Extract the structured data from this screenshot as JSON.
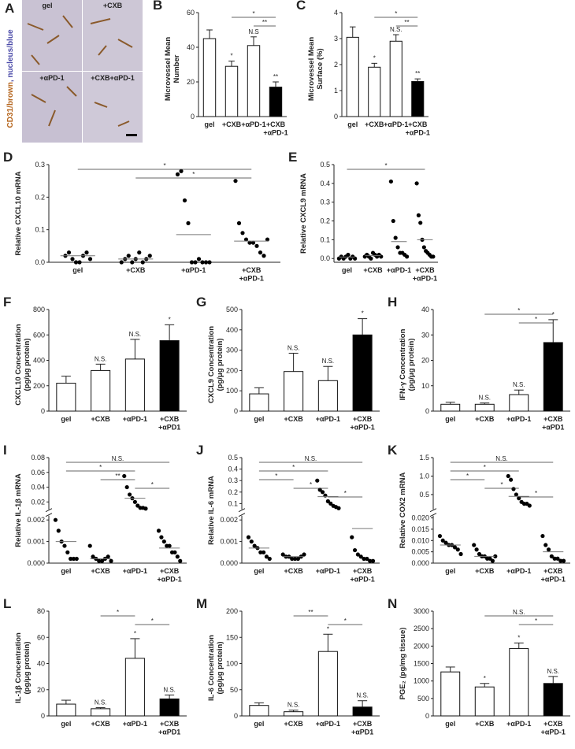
{
  "image_panel": {
    "panel": "A",
    "labels": [
      "gel",
      "+CXB",
      "+αPD-1",
      "+CXB+αPD-1"
    ],
    "side_label": [
      "CD31/brown",
      ", nucleus/blue"
    ]
  },
  "chart_data": [
    {
      "type": "bar",
      "panel": "B",
      "ylabel": "Microvessel Mean\nNumber",
      "categories": [
        "gel",
        "+CXB",
        "+αPD-1",
        "+CXB\n+αPD-1"
      ],
      "values": [
        45,
        29,
        41,
        17
      ],
      "errors": [
        5,
        3,
        5,
        3
      ],
      "colors": [
        "#ffffff",
        "#ffffff",
        "#ffffff",
        "#000000"
      ],
      "bar_labels": [
        null,
        "*",
        "N.S",
        "**"
      ],
      "annotations": [
        {
          "text": "*",
          "from": 1,
          "to": 3
        },
        {
          "text": "**",
          "from": 2,
          "to": 3
        }
      ],
      "ylim": [
        0,
        60
      ],
      "yticks": [
        0,
        20,
        40,
        60
      ]
    },
    {
      "type": "bar",
      "panel": "C",
      "ylabel": "Microvessel Mean\nSurface (%)",
      "categories": [
        "gel",
        "+CXB",
        "+αPD-1",
        "+CXB\n+αPD-1"
      ],
      "values": [
        3.05,
        1.9,
        2.9,
        1.35
      ],
      "errors": [
        0.4,
        0.15,
        0.25,
        0.1
      ],
      "colors": [
        "#ffffff",
        "#ffffff",
        "#ffffff",
        "#000000"
      ],
      "bar_labels": [
        null,
        "*",
        "N.S.",
        "**"
      ],
      "annotations": [
        {
          "text": "*",
          "from": 1,
          "to": 3
        },
        {
          "text": "**",
          "from": 2,
          "to": 3
        }
      ],
      "ylim": [
        0,
        4
      ],
      "yticks": [
        0,
        1,
        2,
        3,
        4
      ]
    },
    {
      "type": "strip",
      "panel": "D",
      "ylabel": "Relative CXCL10 mRNA",
      "categories": [
        "gel",
        "+CXB",
        "+αPD-1",
        "+CXB\n+αPD-1"
      ],
      "values": [
        [
          0.02,
          0.03,
          0.01,
          0.0,
          0.0,
          0.02,
          0.03,
          0.01
        ],
        [
          0.0,
          0.01,
          0.02,
          0.0,
          0.01,
          0.03,
          0.0,
          0.01,
          0.02
        ],
        [
          0.27,
          0.28,
          0.19,
          0.12,
          0.0,
          0.0,
          0.01,
          0.0,
          0.0,
          0.0
        ],
        [
          0.25,
          0.12,
          0.09,
          0.07,
          0.06,
          0.06,
          0.05,
          0.03,
          0.02,
          0.07
        ]
      ],
      "means": [
        0.02,
        0.01,
        0.085,
        0.065
      ],
      "color": "#000000",
      "annotations": [
        {
          "text": "*",
          "from": 0,
          "to": 3
        },
        {
          "text": "*",
          "from": 1,
          "to": 3
        }
      ],
      "ylim": [
        0,
        0.3
      ],
      "yticks": [
        {
          "value": 0,
          "label": "0.0"
        },
        0.1,
        0.2,
        0.3
      ]
    },
    {
      "type": "strip",
      "panel": "E",
      "ylabel": "Relative CXCL9 mRNA",
      "categories": [
        "gel",
        "+CXB",
        "+αPD-1",
        "+CXB\n+αPD-1"
      ],
      "values": [
        [
          0.0,
          0.01,
          0.0,
          0.01,
          0.02,
          0.0,
          0.01,
          0.0
        ],
        [
          0.01,
          0.02,
          0.01,
          0.0,
          0.03,
          0.02,
          0.01,
          0.02,
          0.01
        ],
        [
          0.41,
          0.2,
          0.11,
          0.06,
          0.03,
          0.03,
          0.02,
          0.01
        ],
        [
          0.4,
          0.23,
          0.19,
          0.1,
          0.06,
          0.04,
          0.03,
          0.02,
          0.01,
          0.01
        ]
      ],
      "means": [
        0.008,
        0.015,
        0.09,
        0.1
      ],
      "color": "#000000",
      "annotations": [
        {
          "text": "*",
          "from": 0,
          "to": 3
        }
      ],
      "ylim": [
        -0.02,
        0.5
      ],
      "yticks": [
        {
          "value": 0,
          "label": "0.0"
        },
        0.1,
        0.2,
        0.3,
        0.4,
        0.5
      ]
    },
    {
      "type": "bar",
      "panel": "F",
      "ylabel": "CXCL10 Concentration\n(pg/μg protein)",
      "categories": [
        "gel",
        "+CXB",
        "+αPD-1",
        "+CXB\n+αPD1"
      ],
      "values": [
        220,
        320,
        410,
        555
      ],
      "errors": [
        55,
        50,
        155,
        125
      ],
      "colors": [
        "#ffffff",
        "#ffffff",
        "#ffffff",
        "#000000"
      ],
      "bar_labels": [
        null,
        "N.S.",
        "N.S.",
        "*"
      ],
      "annotations": [],
      "ylim": [
        0,
        800
      ],
      "yticks": [
        0,
        200,
        400,
        600,
        800
      ]
    },
    {
      "type": "bar",
      "panel": "G",
      "ylabel": "CXCL9 Concentration\n(pg/μg protein)",
      "categories": [
        "gel",
        "+CXB",
        "+αPD-1",
        "+CXB\n+αPD-1"
      ],
      "values": [
        85,
        195,
        150,
        375
      ],
      "errors": [
        30,
        90,
        70,
        80
      ],
      "colors": [
        "#ffffff",
        "#ffffff",
        "#ffffff",
        "#000000"
      ],
      "bar_labels": [
        null,
        "N.S.",
        "N.S.",
        "*"
      ],
      "annotations": [],
      "ylim": [
        0,
        500
      ],
      "yticks": [
        0,
        100,
        200,
        300,
        400,
        500
      ]
    },
    {
      "type": "bar",
      "panel": "H",
      "ylabel": "IFN-γ Concentration\n(pg/μg protein)",
      "categories": [
        "gel",
        "+CXB",
        "+αPD-1",
        "+CXB\n+αPD1"
      ],
      "values": [
        2.7,
        2.7,
        6.5,
        27
      ],
      "errors": [
        0.8,
        0.5,
        1.8,
        9
      ],
      "colors": [
        "#ffffff",
        "#ffffff",
        "#ffffff",
        "#000000"
      ],
      "bar_labels": [
        null,
        "N.S.",
        "N.S.",
        "*"
      ],
      "annotations": [
        {
          "text": "*",
          "from": 1,
          "to": 3
        },
        {
          "text": "*",
          "from": 2,
          "to": 3
        }
      ],
      "ylim": [
        0,
        40
      ],
      "yticks": [
        0,
        10,
        20,
        30,
        40
      ]
    },
    {
      "type": "strip",
      "panel": "I",
      "ylabel": "Relative IL-1β mRNA",
      "categories": [
        "gel",
        "+CXB",
        "+αPD-1",
        "+CXB\n+αPD-1"
      ],
      "values": [
        [
          0.002,
          0.0015,
          0.001,
          0.0008,
          0.0005,
          0.0002,
          0.0002,
          0.0002
        ],
        [
          0.0008,
          0.0003,
          0.0002,
          0.0001,
          0.0001,
          0.0002,
          0.0003,
          0.0001
        ],
        [
          0.055,
          0.04,
          0.03,
          0.025,
          0.02,
          0.015,
          0.012,
          0.012,
          0.011
        ],
        [
          0.0015,
          0.0012,
          0.001,
          0.0008,
          0.0008,
          0.0005,
          0.0005,
          0.0003,
          0.0001
        ]
      ],
      "means": [
        0.001,
        0.0002,
        0.025,
        0.0007
      ],
      "color": "#000000",
      "annotations": [
        {
          "text": "N.S.",
          "from": 0,
          "to": 3
        },
        {
          "text": "*",
          "from": 0,
          "to": 2
        },
        {
          "text": "**",
          "from": 1,
          "to": 2
        },
        {
          "text": "*",
          "from": 2,
          "to": 3
        }
      ],
      "ylim": [
        0,
        0.08
      ],
      "y_break": [
        0.0022,
        0.01
      ],
      "yticks": [
        {
          "value": 0,
          "label": "0.000"
        },
        0.001,
        0.002,
        0.02,
        0.04,
        0.06,
        0.08
      ]
    },
    {
      "type": "strip",
      "panel": "J",
      "ylabel": "Relative IL-6 mRNA",
      "categories": [
        "gel",
        "+CXB",
        "+αPD-1",
        "+CXB\n+αPD-1"
      ],
      "values": [
        [
          0.0012,
          0.001,
          0.0008,
          0.0007,
          0.0005,
          0.0005,
          0.0003,
          0.0002
        ],
        [
          0.0004,
          0.0003,
          0.0003,
          0.0002,
          0.0002,
          0.0002,
          0.0003,
          0.0004
        ],
        [
          0.3,
          0.22,
          0.2,
          0.17,
          0.12,
          0.1,
          0.08,
          0.07,
          0.06
        ],
        [
          0.0012,
          0.0006,
          0.0004,
          0.0003,
          0.0002,
          0.0002,
          0.0001,
          0.0001
        ]
      ],
      "means": [
        0.0007,
        0.0003,
        0.16,
        0.0016
      ],
      "color": "#000000",
      "annotations": [
        {
          "text": "N.S.",
          "from": 0,
          "to": 3
        },
        {
          "text": "*",
          "from": 0,
          "to": 2
        },
        {
          "text": "*",
          "from": 0,
          "to": 1
        },
        {
          "text": "*",
          "from": 1,
          "to": 2
        },
        {
          "text": "*",
          "from": 2,
          "to": 3
        }
      ],
      "ylim": [
        0,
        0.5
      ],
      "y_break": [
        0.0022,
        0.05
      ],
      "yticks": [
        {
          "value": 0,
          "label": "0.000"
        },
        0.001,
        0.002,
        0.1,
        0.2,
        0.3,
        0.4,
        0.5
      ]
    },
    {
      "type": "strip",
      "panel": "K",
      "ylabel": "Relative COX2 mRNA",
      "categories": [
        "gel",
        "+CXB",
        "+αPD-1",
        "+CXB\n+αPD-1"
      ],
      "values": [
        [
          0.012,
          0.01,
          0.009,
          0.008,
          0.008,
          0.007,
          0.006,
          0.004
        ],
        [
          0.008,
          0.006,
          0.004,
          0.003,
          0.003,
          0.002,
          0.002,
          0.001,
          0.003
        ],
        [
          1.0,
          0.9,
          0.65,
          0.5,
          0.4,
          0.3,
          0.25,
          0.25,
          0.2
        ],
        [
          0.012,
          0.008,
          0.006,
          0.003,
          0.002,
          0.002,
          0.001,
          0.001
        ]
      ],
      "means": [
        0.008,
        0.003,
        0.45,
        0.005
      ],
      "color": "#000000",
      "annotations": [
        {
          "text": "N.S.",
          "from": 0,
          "to": 3
        },
        {
          "text": "*",
          "from": 0,
          "to": 2
        },
        {
          "text": "*",
          "from": 0,
          "to": 1
        },
        {
          "text": "*",
          "from": 1,
          "to": 2
        },
        {
          "text": "*",
          "from": 2,
          "to": 3
        }
      ],
      "ylim": [
        0,
        1.5
      ],
      "y_break": [
        0.021,
        0.1
      ],
      "yticks": [
        {
          "value": 0,
          "label": "0.000"
        },
        0.005,
        {
          "value": 0.01,
          "label": "0.010"
        },
        0.015,
        {
          "value": 0.02,
          "label": "0.020"
        },
        0.5,
        {
          "value": 1,
          "label": "1.0"
        },
        1.5
      ]
    },
    {
      "type": "bar",
      "panel": "L",
      "ylabel": "IL-1β Concentration\n(pg/μg protein)",
      "categories": [
        "gel",
        "+CXB",
        "+αPD-1",
        "+CXB\n+αPD1"
      ],
      "values": [
        9,
        5.5,
        44,
        13
      ],
      "errors": [
        3,
        0.8,
        15,
        3
      ],
      "colors": [
        "#ffffff",
        "#ffffff",
        "#ffffff",
        "#000000"
      ],
      "bar_labels": [
        null,
        "N.S.",
        "*",
        "N.S."
      ],
      "annotations": [
        {
          "text": "*",
          "from": 1,
          "to": 2
        },
        {
          "text": "*",
          "from": 2,
          "to": 3
        }
      ],
      "ylim": [
        0,
        80
      ],
      "yticks": [
        0,
        20,
        40,
        60,
        80
      ]
    },
    {
      "type": "bar",
      "panel": "M",
      "ylabel": "IL-6 Concentration\n(pg/μg protein)",
      "categories": [
        "gel",
        "+CXB",
        "+αPD-1",
        "+CXB\n+αPD1"
      ],
      "values": [
        20,
        8,
        123,
        17
      ],
      "errors": [
        5,
        3,
        33,
        12
      ],
      "colors": [
        "#ffffff",
        "#ffffff",
        "#ffffff",
        "#000000"
      ],
      "bar_labels": [
        null,
        "N.S.",
        "*",
        "N.S."
      ],
      "annotations": [
        {
          "text": "**",
          "from": 1,
          "to": 2
        },
        {
          "text": "*",
          "from": 2,
          "to": 3
        }
      ],
      "ylim": [
        0,
        200
      ],
      "yticks": [
        0,
        50,
        100,
        150,
        200
      ]
    },
    {
      "type": "bar",
      "panel": "N",
      "ylabel": "PGE₂ (pg/mg tissue)",
      "categories": [
        "gel",
        "+CXB",
        "+αPD-1",
        "+CXB\n+αPD-1"
      ],
      "values": [
        1260,
        830,
        1930,
        930
      ],
      "errors": [
        140,
        100,
        160,
        200
      ],
      "colors": [
        "#ffffff",
        "#ffffff",
        "#ffffff",
        "#000000"
      ],
      "bar_labels": [
        null,
        "*",
        "*",
        "N.S."
      ],
      "annotations": [
        {
          "text": "N.S.",
          "from": 1,
          "to": 3
        },
        {
          "text": "*",
          "from": 2,
          "to": 3
        }
      ],
      "ylim": [
        0,
        3000
      ],
      "yticks": [
        0,
        500,
        1000,
        1500,
        2000,
        2500,
        3000
      ]
    }
  ]
}
